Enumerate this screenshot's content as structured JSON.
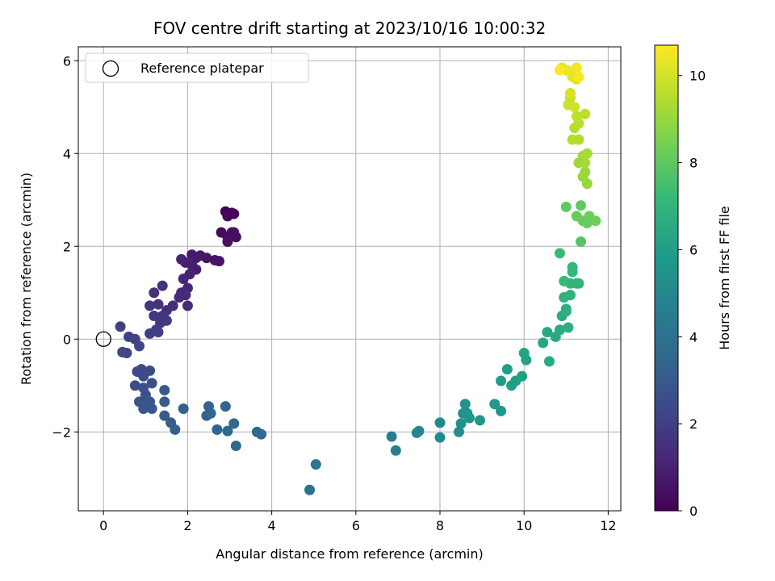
{
  "chart_data": {
    "type": "scatter",
    "title": "FOV centre drift starting at 2023/10/16 10:00:32",
    "xlabel": "Angular distance from reference (arcmin)",
    "ylabel": "Rotation from reference (arcmin)",
    "xlim": [
      -0.6,
      12.3
    ],
    "ylim": [
      -3.7,
      6.3
    ],
    "xticks": [
      0,
      2,
      4,
      6,
      8,
      10,
      12
    ],
    "xtick_labels": [
      "0",
      "2",
      "4",
      "6",
      "8",
      "10",
      "12"
    ],
    "yticks": [
      -2,
      0,
      2,
      4,
      6
    ],
    "ytick_labels": [
      "−2",
      "0",
      "2",
      "4",
      "6"
    ],
    "grid": true,
    "legend": {
      "position": "top-left",
      "entries": [
        "Reference platepar"
      ]
    },
    "reference_point": {
      "x": 0,
      "y": 0,
      "marker": "open-circle"
    },
    "colorbar": {
      "label": "Hours from first FF file",
      "colormap": "viridis",
      "range": [
        0,
        10.7
      ],
      "ticks": [
        0,
        2,
        4,
        6,
        8,
        10
      ],
      "tick_labels": [
        "0",
        "2",
        "4",
        "6",
        "8",
        "10"
      ]
    },
    "series": [
      {
        "x_y_hours": [
          [
            2.9,
            2.75,
            0.05
          ],
          [
            3.05,
            2.72,
            0.1
          ],
          [
            3.1,
            2.7,
            0.15
          ],
          [
            2.95,
            2.65,
            0.2
          ],
          [
            2.8,
            2.3,
            0.25
          ],
          [
            2.95,
            2.2,
            0.3
          ],
          [
            3.05,
            2.3,
            0.35
          ],
          [
            3.15,
            2.2,
            0.4
          ],
          [
            3.1,
            2.3,
            0.45
          ],
          [
            2.95,
            2.1,
            0.5
          ],
          [
            2.75,
            1.68,
            0.55
          ],
          [
            2.65,
            1.7,
            0.6
          ],
          [
            2.45,
            1.75,
            0.65
          ],
          [
            2.3,
            1.8,
            0.7
          ],
          [
            2.2,
            1.75,
            0.75
          ],
          [
            2.1,
            1.82,
            0.8
          ],
          [
            2.2,
            1.5,
            0.85
          ],
          [
            2.1,
            1.6,
            0.9
          ],
          [
            1.95,
            1.65,
            0.95
          ],
          [
            1.85,
            1.72,
            1.0
          ],
          [
            2.05,
            1.4,
            1.05
          ],
          [
            1.9,
            1.3,
            1.1
          ],
          [
            2.0,
            1.1,
            1.15
          ],
          [
            1.85,
            1.0,
            1.2
          ],
          [
            1.95,
            0.95,
            1.25
          ],
          [
            1.8,
            0.9,
            1.3
          ],
          [
            2.0,
            0.72,
            1.35
          ],
          [
            1.65,
            0.72,
            1.4
          ],
          [
            1.5,
            0.62,
            1.45
          ],
          [
            1.4,
            1.15,
            1.5
          ],
          [
            1.2,
            1.0,
            1.55
          ],
          [
            1.3,
            0.75,
            1.6
          ],
          [
            1.1,
            0.72,
            1.65
          ],
          [
            1.2,
            0.5,
            1.7
          ],
          [
            1.4,
            0.5,
            1.75
          ],
          [
            1.35,
            0.35,
            1.8
          ],
          [
            1.5,
            0.4,
            1.85
          ],
          [
            1.25,
            0.2,
            1.9
          ],
          [
            1.1,
            0.12,
            1.95
          ],
          [
            1.3,
            0.15,
            2.0
          ],
          [
            0.4,
            0.27,
            2.05
          ],
          [
            0.6,
            0.05,
            2.1
          ],
          [
            0.75,
            0.0,
            2.15
          ],
          [
            0.55,
            -0.3,
            2.2
          ],
          [
            0.45,
            -0.28,
            2.25
          ],
          [
            0.85,
            -0.15,
            2.3
          ],
          [
            0.9,
            -0.65,
            2.35
          ],
          [
            0.8,
            -0.7,
            2.4
          ],
          [
            1.1,
            -0.68,
            2.45
          ],
          [
            0.95,
            -0.8,
            2.5
          ],
          [
            0.75,
            -1.0,
            2.55
          ],
          [
            0.95,
            -1.05,
            2.6
          ],
          [
            1.15,
            -0.95,
            2.65
          ],
          [
            1.0,
            -1.2,
            2.7
          ],
          [
            0.85,
            -1.35,
            2.75
          ],
          [
            1.0,
            -1.4,
            2.8
          ],
          [
            0.95,
            -1.5,
            2.85
          ],
          [
            1.15,
            -1.5,
            2.9
          ],
          [
            1.1,
            -1.35,
            2.95
          ],
          [
            1.45,
            -1.1,
            3.0
          ],
          [
            1.45,
            -1.35,
            3.05
          ],
          [
            1.45,
            -1.65,
            3.1
          ],
          [
            1.6,
            -1.8,
            3.15
          ],
          [
            1.7,
            -1.95,
            3.2
          ],
          [
            1.9,
            -1.5,
            3.25
          ],
          [
            2.5,
            -1.45,
            3.3
          ],
          [
            2.45,
            -1.65,
            3.35
          ],
          [
            2.55,
            -1.6,
            3.4
          ],
          [
            2.9,
            -1.45,
            3.45
          ],
          [
            2.7,
            -1.95,
            3.5
          ],
          [
            2.95,
            -1.98,
            3.55
          ],
          [
            3.1,
            -1.82,
            3.6
          ],
          [
            3.15,
            -2.3,
            3.65
          ],
          [
            3.65,
            -2.0,
            3.7
          ],
          [
            3.75,
            -2.05,
            3.75
          ],
          [
            4.9,
            -3.25,
            4.1
          ],
          [
            5.05,
            -2.7,
            4.15
          ],
          [
            6.85,
            -2.1,
            4.6
          ],
          [
            6.95,
            -2.4,
            4.65
          ],
          [
            7.45,
            -2.02,
            4.9
          ],
          [
            7.5,
            -1.98,
            4.95
          ],
          [
            8.0,
            -1.8,
            5.05
          ],
          [
            8.0,
            -2.12,
            5.1
          ],
          [
            8.45,
            -2.0,
            5.3
          ],
          [
            8.5,
            -1.82,
            5.35
          ],
          [
            8.55,
            -1.6,
            5.4
          ],
          [
            8.6,
            -1.4,
            5.45
          ],
          [
            8.65,
            -1.6,
            5.5
          ],
          [
            8.7,
            -1.7,
            5.55
          ],
          [
            8.95,
            -1.75,
            5.6
          ],
          [
            9.3,
            -1.4,
            5.7
          ],
          [
            9.45,
            -1.55,
            5.75
          ],
          [
            9.45,
            -0.9,
            5.85
          ],
          [
            9.6,
            -0.65,
            5.9
          ],
          [
            9.7,
            -1.0,
            5.95
          ],
          [
            9.8,
            -0.9,
            6.0
          ],
          [
            9.95,
            -0.8,
            6.05
          ],
          [
            10.0,
            -0.3,
            6.15
          ],
          [
            10.05,
            -0.45,
            6.2
          ],
          [
            10.45,
            -0.08,
            6.3
          ],
          [
            10.55,
            0.15,
            6.4
          ],
          [
            10.6,
            -0.48,
            6.45
          ],
          [
            10.75,
            0.05,
            6.5
          ],
          [
            10.85,
            0.2,
            6.55
          ],
          [
            10.9,
            0.5,
            6.6
          ],
          [
            11.0,
            0.65,
            6.7
          ],
          [
            11.05,
            0.25,
            6.75
          ],
          [
            11.0,
            0.6,
            6.8
          ],
          [
            10.95,
            0.9,
            6.85
          ],
          [
            11.1,
            0.95,
            6.9
          ],
          [
            11.25,
            1.2,
            6.95
          ],
          [
            11.3,
            1.2,
            7.0
          ],
          [
            11.1,
            1.2,
            7.05
          ],
          [
            11.15,
            1.45,
            7.1
          ],
          [
            11.15,
            1.55,
            7.15
          ],
          [
            10.95,
            1.25,
            7.2
          ],
          [
            10.85,
            1.85,
            7.25
          ],
          [
            11.35,
            2.1,
            7.8
          ],
          [
            11.0,
            2.85,
            8.0
          ],
          [
            11.35,
            2.88,
            8.05
          ],
          [
            11.25,
            2.65,
            8.1
          ],
          [
            11.4,
            2.55,
            8.15
          ],
          [
            11.5,
            2.5,
            8.2
          ],
          [
            11.55,
            2.65,
            8.25
          ],
          [
            11.7,
            2.55,
            8.3
          ],
          [
            11.5,
            3.35,
            9.0
          ],
          [
            11.4,
            3.5,
            9.05
          ],
          [
            11.45,
            3.6,
            9.1
          ],
          [
            11.3,
            3.8,
            9.15
          ],
          [
            11.45,
            3.8,
            9.2
          ],
          [
            11.4,
            3.95,
            9.25
          ],
          [
            11.5,
            4.0,
            9.3
          ],
          [
            11.3,
            4.3,
            9.45
          ],
          [
            11.15,
            4.3,
            9.5
          ],
          [
            11.2,
            4.55,
            9.55
          ],
          [
            11.3,
            4.65,
            9.6
          ],
          [
            11.25,
            4.8,
            9.65
          ],
          [
            11.45,
            4.85,
            9.7
          ],
          [
            11.1,
            5.2,
            9.8
          ],
          [
            11.05,
            5.05,
            9.85
          ],
          [
            11.2,
            5.0,
            9.9
          ],
          [
            11.1,
            5.3,
            10.1
          ],
          [
            11.25,
            5.6,
            10.2
          ],
          [
            11.15,
            5.65,
            10.25
          ],
          [
            11.05,
            5.78,
            10.3
          ],
          [
            10.9,
            5.85,
            10.4
          ],
          [
            11.0,
            5.8,
            10.45
          ],
          [
            11.25,
            5.85,
            10.55
          ],
          [
            11.3,
            5.65,
            10.6
          ],
          [
            10.85,
            5.8,
            10.65
          ]
        ]
      }
    ]
  }
}
